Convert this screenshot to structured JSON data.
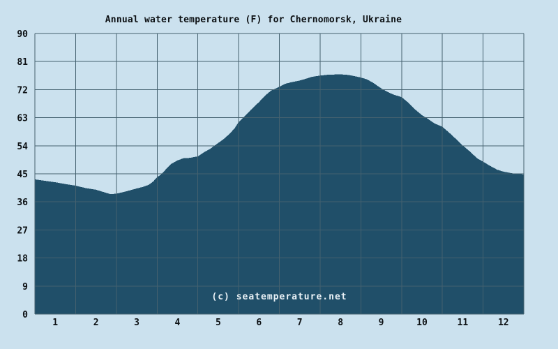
{
  "chart_data": {
    "type": "area",
    "title": "Annual water temperature (F) for Chernomorsk, Ukraine",
    "watermark": "(c) seatemperature.net",
    "xlabel": "",
    "ylabel": "",
    "xlim": [
      0,
      12
    ],
    "ylim": [
      0,
      90
    ],
    "x_tick_labels": [
      "1",
      "2",
      "3",
      "4",
      "5",
      "6",
      "7",
      "8",
      "9",
      "10",
      "11",
      "12"
    ],
    "y_tick_values": [
      0,
      9,
      18,
      27,
      36,
      45,
      54,
      63,
      72,
      81,
      90
    ],
    "grid": true,
    "legend": false,
    "series_name": "Water temperature (F)",
    "monthly_avg_f": [
      42.3,
      39.9,
      40.3,
      49.3,
      54.9,
      68.0,
      74.9,
      76.9,
      72.4,
      63.8,
      54.1,
      45.7
    ],
    "curve_points": [
      [
        0.0,
        43.2
      ],
      [
        0.17,
        42.9
      ],
      [
        0.5,
        42.3
      ],
      [
        0.8,
        41.6
      ],
      [
        1.0,
        41.2
      ],
      [
        1.25,
        40.4
      ],
      [
        1.5,
        39.9
      ],
      [
        1.7,
        39.1
      ],
      [
        1.85,
        38.5
      ],
      [
        2.0,
        38.6
      ],
      [
        2.25,
        39.4
      ],
      [
        2.5,
        40.3
      ],
      [
        2.65,
        40.8
      ],
      [
        2.8,
        41.5
      ],
      [
        2.9,
        42.5
      ],
      [
        3.0,
        43.9
      ],
      [
        3.1,
        44.8
      ],
      [
        3.2,
        46.2
      ],
      [
        3.35,
        48.2
      ],
      [
        3.5,
        49.3
      ],
      [
        3.65,
        50.0
      ],
      [
        3.8,
        50.1
      ],
      [
        4.0,
        50.6
      ],
      [
        4.15,
        51.9
      ],
      [
        4.3,
        53.0
      ],
      [
        4.5,
        54.9
      ],
      [
        4.62,
        56.0
      ],
      [
        4.75,
        57.5
      ],
      [
        4.9,
        59.5
      ],
      [
        5.0,
        61.6
      ],
      [
        5.15,
        63.5
      ],
      [
        5.3,
        65.5
      ],
      [
        5.5,
        68.0
      ],
      [
        5.65,
        70.1
      ],
      [
        5.8,
        71.7
      ],
      [
        6.0,
        72.9
      ],
      [
        6.15,
        73.9
      ],
      [
        6.3,
        74.4
      ],
      [
        6.5,
        74.9
      ],
      [
        6.65,
        75.5
      ],
      [
        6.8,
        76.1
      ],
      [
        7.0,
        76.5
      ],
      [
        7.2,
        76.8
      ],
      [
        7.5,
        76.9
      ],
      [
        7.7,
        76.7
      ],
      [
        7.85,
        76.3
      ],
      [
        8.0,
        75.9
      ],
      [
        8.15,
        75.3
      ],
      [
        8.3,
        74.2
      ],
      [
        8.5,
        72.4
      ],
      [
        8.65,
        71.3
      ],
      [
        8.8,
        70.4
      ],
      [
        9.0,
        69.6
      ],
      [
        9.15,
        68.0
      ],
      [
        9.3,
        66.0
      ],
      [
        9.5,
        63.8
      ],
      [
        9.65,
        62.6
      ],
      [
        9.8,
        61.2
      ],
      [
        10.0,
        60.1
      ],
      [
        10.2,
        57.8
      ],
      [
        10.35,
        56.0
      ],
      [
        10.5,
        54.1
      ],
      [
        10.7,
        51.9
      ],
      [
        10.85,
        50.0
      ],
      [
        11.0,
        48.9
      ],
      [
        11.15,
        47.7
      ],
      [
        11.35,
        46.3
      ],
      [
        11.5,
        45.7
      ],
      [
        11.7,
        45.2
      ],
      [
        11.85,
        44.9
      ],
      [
        12.0,
        44.8
      ]
    ],
    "colors": {
      "background": "#cbe1ee",
      "area": "#204f69",
      "grid": "#44616f",
      "text": "#0d1114",
      "watermark": "#e9f1f6"
    }
  }
}
